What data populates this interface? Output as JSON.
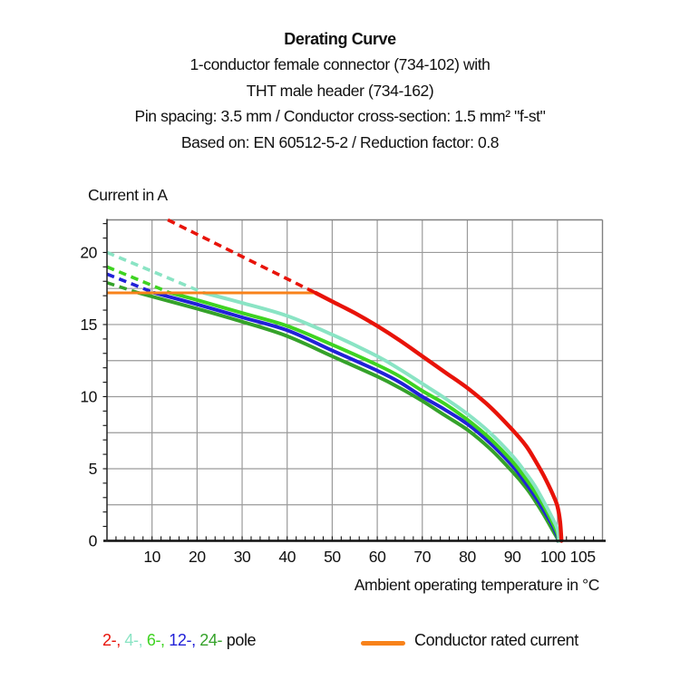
{
  "header": {
    "title": "Derating Curve",
    "subtitle_lines": [
      "1-conductor female connector (734-102) with",
      "THT male header (734-162)",
      "Pin spacing: 3.5 mm / Conductor cross-section: 1.5 mm² \"f-st\"",
      "Based on: EN 60512-5-2 / Reduction factor: 0.8"
    ]
  },
  "chart_data": {
    "type": "line",
    "title": "Derating Curve",
    "ylabel": "Current in A",
    "xlabel": "Ambient operating temperature in °C",
    "xlim": [
      0,
      110
    ],
    "ylim": [
      0,
      22.26
    ],
    "grid": {
      "on": true,
      "x_step": 10,
      "y_step": 2.5,
      "color": "#9a9a9a"
    },
    "minor_ticks": {
      "x_step": 2,
      "y_step": 1
    },
    "x_tick_labels": [
      {
        "value": 10,
        "label": "10"
      },
      {
        "value": 20,
        "label": "20"
      },
      {
        "value": 30,
        "label": "30"
      },
      {
        "value": 40,
        "label": "40"
      },
      {
        "value": 50,
        "label": "50"
      },
      {
        "value": 60,
        "label": "60"
      },
      {
        "value": 70,
        "label": "70"
      },
      {
        "value": 80,
        "label": "80"
      },
      {
        "value": 90,
        "label": "90"
      },
      {
        "value": 100,
        "label": "100",
        "dx": -5
      },
      {
        "value": 105,
        "label": "105",
        "dx": 3
      }
    ],
    "y_tick_labels": [
      {
        "value": 0,
        "label": "0"
      },
      {
        "value": 5,
        "label": "5"
      },
      {
        "value": 10,
        "label": "10"
      },
      {
        "value": 15,
        "label": "15"
      },
      {
        "value": 20,
        "label": "20"
      }
    ],
    "rated_current": {
      "label": "Conductor rated current",
      "value": 17.2,
      "x_start": 0,
      "x_end": 46.3,
      "color": "#f8821a"
    },
    "series": [
      {
        "name": "2-pole",
        "color": "#e81309",
        "dashed": [
          [
            13.5,
            22.26
          ],
          [
            46.3,
            17.2
          ]
        ],
        "solid": [
          [
            46.3,
            17.2
          ],
          [
            50,
            16.6
          ],
          [
            55,
            15.8
          ],
          [
            60,
            14.9
          ],
          [
            65,
            13.9
          ],
          [
            70,
            12.8
          ],
          [
            75,
            11.7
          ],
          [
            80,
            10.6
          ],
          [
            85,
            9.3
          ],
          [
            90,
            7.7
          ],
          [
            93,
            6.6
          ],
          [
            95,
            5.6
          ],
          [
            97,
            4.5
          ],
          [
            99,
            3.2
          ],
          [
            100,
            2.4
          ],
          [
            100.6,
            1.3
          ],
          [
            100.9,
            0
          ]
        ]
      },
      {
        "name": "4-pole",
        "color": "#8ae4c4",
        "dashed": [
          [
            0,
            20.0
          ],
          [
            21.5,
            17.2
          ]
        ],
        "solid": [
          [
            21.5,
            17.2
          ],
          [
            30,
            16.5
          ],
          [
            40,
            15.6
          ],
          [
            50,
            14.3
          ],
          [
            60,
            12.8
          ],
          [
            65,
            11.9
          ],
          [
            70,
            10.9
          ],
          [
            75,
            9.9
          ],
          [
            80,
            8.8
          ],
          [
            85,
            7.5
          ],
          [
            90,
            5.9
          ],
          [
            93,
            4.7
          ],
          [
            95,
            3.8
          ],
          [
            97,
            2.7
          ],
          [
            99,
            1.5
          ],
          [
            100,
            0.8
          ],
          [
            100.4,
            0
          ]
        ]
      },
      {
        "name": "6-pole",
        "color": "#3ed321",
        "dashed": [
          [
            0,
            19.0
          ],
          [
            14,
            17.2
          ]
        ],
        "solid": [
          [
            14,
            17.2
          ],
          [
            20,
            16.7
          ],
          [
            30,
            15.8
          ],
          [
            40,
            14.9
          ],
          [
            50,
            13.6
          ],
          [
            60,
            12.2
          ],
          [
            65,
            11.4
          ],
          [
            70,
            10.4
          ],
          [
            75,
            9.5
          ],
          [
            80,
            8.4
          ],
          [
            85,
            7.1
          ],
          [
            90,
            5.5
          ],
          [
            93,
            4.3
          ],
          [
            95,
            3.4
          ],
          [
            97,
            2.4
          ],
          [
            99,
            1.2
          ],
          [
            100,
            0.5
          ],
          [
            100.3,
            0
          ]
        ]
      },
      {
        "name": "12-pole",
        "color": "#2121d8",
        "dashed": [
          [
            0,
            18.5
          ],
          [
            10.5,
            17.2
          ]
        ],
        "solid": [
          [
            10.5,
            17.2
          ],
          [
            20,
            16.4
          ],
          [
            30,
            15.5
          ],
          [
            40,
            14.6
          ],
          [
            50,
            13.2
          ],
          [
            60,
            11.8
          ],
          [
            65,
            11.0
          ],
          [
            70,
            10.0
          ],
          [
            75,
            9.1
          ],
          [
            80,
            8.1
          ],
          [
            85,
            6.8
          ],
          [
            90,
            5.2
          ],
          [
            93,
            4.0
          ],
          [
            95,
            3.1
          ],
          [
            97,
            2.1
          ],
          [
            99,
            1.0
          ],
          [
            100,
            0.3
          ],
          [
            100.2,
            0
          ]
        ]
      },
      {
        "name": "24-pole",
        "color": "#35a22a",
        "dashed": [
          [
            0,
            17.9
          ],
          [
            7,
            17.2
          ]
        ],
        "solid": [
          [
            7,
            17.2
          ],
          [
            20,
            16.1
          ],
          [
            30,
            15.2
          ],
          [
            40,
            14.2
          ],
          [
            50,
            12.8
          ],
          [
            60,
            11.4
          ],
          [
            65,
            10.6
          ],
          [
            70,
            9.7
          ],
          [
            75,
            8.7
          ],
          [
            80,
            7.7
          ],
          [
            85,
            6.4
          ],
          [
            90,
            4.8
          ],
          [
            93,
            3.7
          ],
          [
            95,
            2.8
          ],
          [
            97,
            1.8
          ],
          [
            99,
            0.7
          ],
          [
            100,
            0.15
          ],
          [
            100.1,
            0
          ]
        ]
      }
    ]
  },
  "legend": {
    "pole_entries": [
      {
        "label": "2-",
        "color": "#e81309"
      },
      {
        "label": "4-",
        "color": "#8ae4c4"
      },
      {
        "label": "6-",
        "color": "#3ed321"
      },
      {
        "label": "12-",
        "color": "#2121d8"
      },
      {
        "label": "24-",
        "color": "#35a22a"
      }
    ],
    "separator": ", ",
    "suffix": " pole",
    "suffix_color": "#111111",
    "rated": {
      "label": "Conductor rated current",
      "color": "#f8821a"
    }
  }
}
